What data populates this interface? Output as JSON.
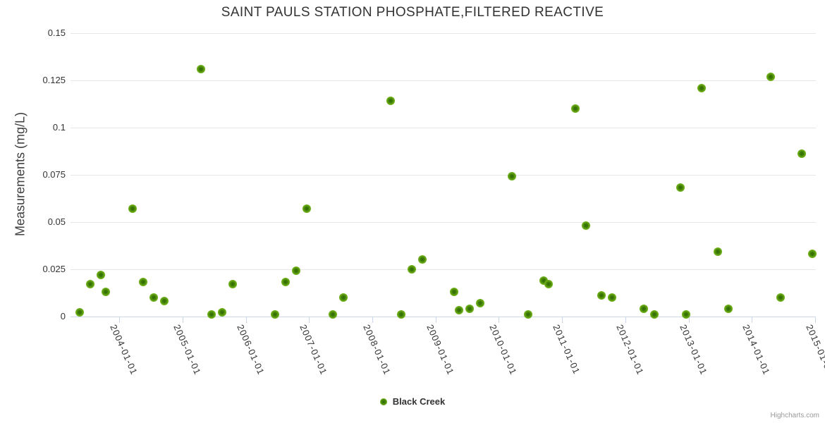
{
  "chart": {
    "title": "SAINT PAULS STATION PHOSPHATE,FILTERED REACTIVE",
    "y_axis_title": "Measurements (mg/L)",
    "credits": "Highcharts.com"
  },
  "legend": {
    "label": "Black Creek"
  },
  "colors": {
    "point_fill": "#78bd22",
    "point_core": "#2f6a04",
    "grid": "#e6e6e6",
    "axis_line": "#ccd6eb",
    "text": "#333333",
    "credits_text": "#999999"
  },
  "chart_data": {
    "type": "scatter",
    "title": "SAINT PAULS STATION PHOSPHATE,FILTERED REACTIVE",
    "xlabel": "",
    "ylabel": "Measurements (mg/L)",
    "ylim": [
      0,
      0.15
    ],
    "yticks": [
      0,
      0.025,
      0.05,
      0.075,
      0.1,
      0.125,
      0.15
    ],
    "ytick_labels": [
      "0",
      "0.025",
      "0.05",
      "0.075",
      "0.1",
      "0.125",
      "0.15"
    ],
    "xticks": [
      "2004-01-01",
      "2005-01-01",
      "2006-01-01",
      "2007-01-01",
      "2008-01-01",
      "2009-01-01",
      "2010-01-01",
      "2011-01-01",
      "2012-01-01",
      "2013-01-01",
      "2014-01-01",
      "2015-01-01"
    ],
    "x_range_decimal_years": [
      2003.23,
      2015.01
    ],
    "grid": true,
    "legend_position": "bottom-center",
    "series": [
      {
        "name": "Black Creek",
        "points": [
          {
            "date": "2003-05",
            "value": 0.002
          },
          {
            "date": "2003-07",
            "value": 0.017
          },
          {
            "date": "2003-09",
            "value": 0.022
          },
          {
            "date": "2003-10",
            "value": 0.013
          },
          {
            "date": "2004-03",
            "value": 0.057
          },
          {
            "date": "2004-05",
            "value": 0.018
          },
          {
            "date": "2004-07",
            "value": 0.01
          },
          {
            "date": "2004-09",
            "value": 0.008
          },
          {
            "date": "2005-04",
            "value": 0.131
          },
          {
            "date": "2005-06",
            "value": 0.001
          },
          {
            "date": "2005-08",
            "value": 0.002
          },
          {
            "date": "2005-10",
            "value": 0.017
          },
          {
            "date": "2006-06",
            "value": 0.001
          },
          {
            "date": "2006-08",
            "value": 0.018
          },
          {
            "date": "2006-10",
            "value": 0.024
          },
          {
            "date": "2006-12",
            "value": 0.057
          },
          {
            "date": "2007-05",
            "value": 0.001
          },
          {
            "date": "2007-07",
            "value": 0.01
          },
          {
            "date": "2008-04",
            "value": 0.114
          },
          {
            "date": "2008-06",
            "value": 0.001
          },
          {
            "date": "2008-08",
            "value": 0.025
          },
          {
            "date": "2008-10",
            "value": 0.03
          },
          {
            "date": "2009-04",
            "value": 0.013
          },
          {
            "date": "2009-05",
            "value": 0.003
          },
          {
            "date": "2009-07",
            "value": 0.004
          },
          {
            "date": "2009-09",
            "value": 0.007
          },
          {
            "date": "2010-03",
            "value": 0.074
          },
          {
            "date": "2010-06",
            "value": 0.001
          },
          {
            "date": "2010-09",
            "value": 0.019
          },
          {
            "date": "2010-10",
            "value": 0.017
          },
          {
            "date": "2011-03",
            "value": 0.11
          },
          {
            "date": "2011-05",
            "value": 0.048
          },
          {
            "date": "2011-08",
            "value": 0.011
          },
          {
            "date": "2011-10",
            "value": 0.01
          },
          {
            "date": "2012-04",
            "value": 0.004
          },
          {
            "date": "2012-06",
            "value": 0.001
          },
          {
            "date": "2012-11",
            "value": 0.068
          },
          {
            "date": "2012-12",
            "value": 0.001
          },
          {
            "date": "2013-03",
            "value": 0.121
          },
          {
            "date": "2013-06",
            "value": 0.034
          },
          {
            "date": "2013-08",
            "value": 0.004
          },
          {
            "date": "2014-04",
            "value": 0.127
          },
          {
            "date": "2014-06",
            "value": 0.01
          },
          {
            "date": "2014-10",
            "value": 0.086
          },
          {
            "date": "2014-12",
            "value": 0.033
          }
        ]
      }
    ]
  }
}
